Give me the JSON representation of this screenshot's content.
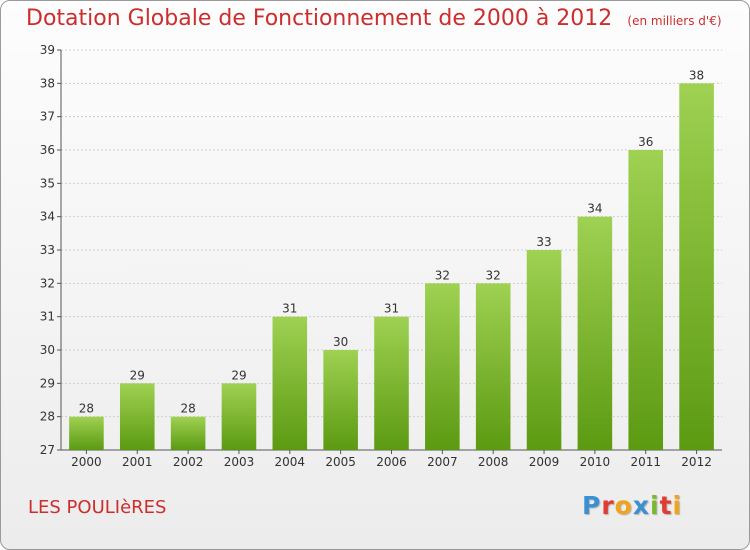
{
  "header": {
    "title": "Dotation Globale de Fonctionnement de 2000 à 2012",
    "unit_note": "(en milliers d'€)"
  },
  "footer": {
    "commune": "LES POULIèRES",
    "logo_letters": [
      {
        "char": "P",
        "color": "#3b8fd3"
      },
      {
        "char": "r",
        "color": "#e03c31"
      },
      {
        "char": "o",
        "color": "#f1a31a"
      },
      {
        "char": "x",
        "color": "#3b8fd3"
      },
      {
        "char": "i",
        "color": "#7bb830"
      },
      {
        "char": "t",
        "color": "#e03c31"
      },
      {
        "char": "i",
        "color": "#f1a31a"
      }
    ]
  },
  "colors": {
    "bar_light": "#9fd152",
    "bar_dark": "#5c9a12",
    "title": "#cc2d2d",
    "grid": "#cfcfcf",
    "axis": "#555555"
  },
  "chart_data": {
    "type": "bar",
    "title": "Dotation Globale de Fonctionnement de 2000 à 2012",
    "xlabel": "",
    "ylabel": "",
    "categories": [
      "2000",
      "2001",
      "2002",
      "2003",
      "2004",
      "2005",
      "2006",
      "2007",
      "2008",
      "2009",
      "2010",
      "2011",
      "2012"
    ],
    "values": [
      28,
      29,
      28,
      29,
      31,
      30,
      31,
      32,
      32,
      33,
      34,
      36,
      38
    ],
    "ylim": [
      27,
      39
    ],
    "yticks": [
      27,
      28,
      29,
      30,
      31,
      32,
      33,
      34,
      35,
      36,
      37,
      38,
      39
    ],
    "grid": true,
    "data_labels": true
  }
}
